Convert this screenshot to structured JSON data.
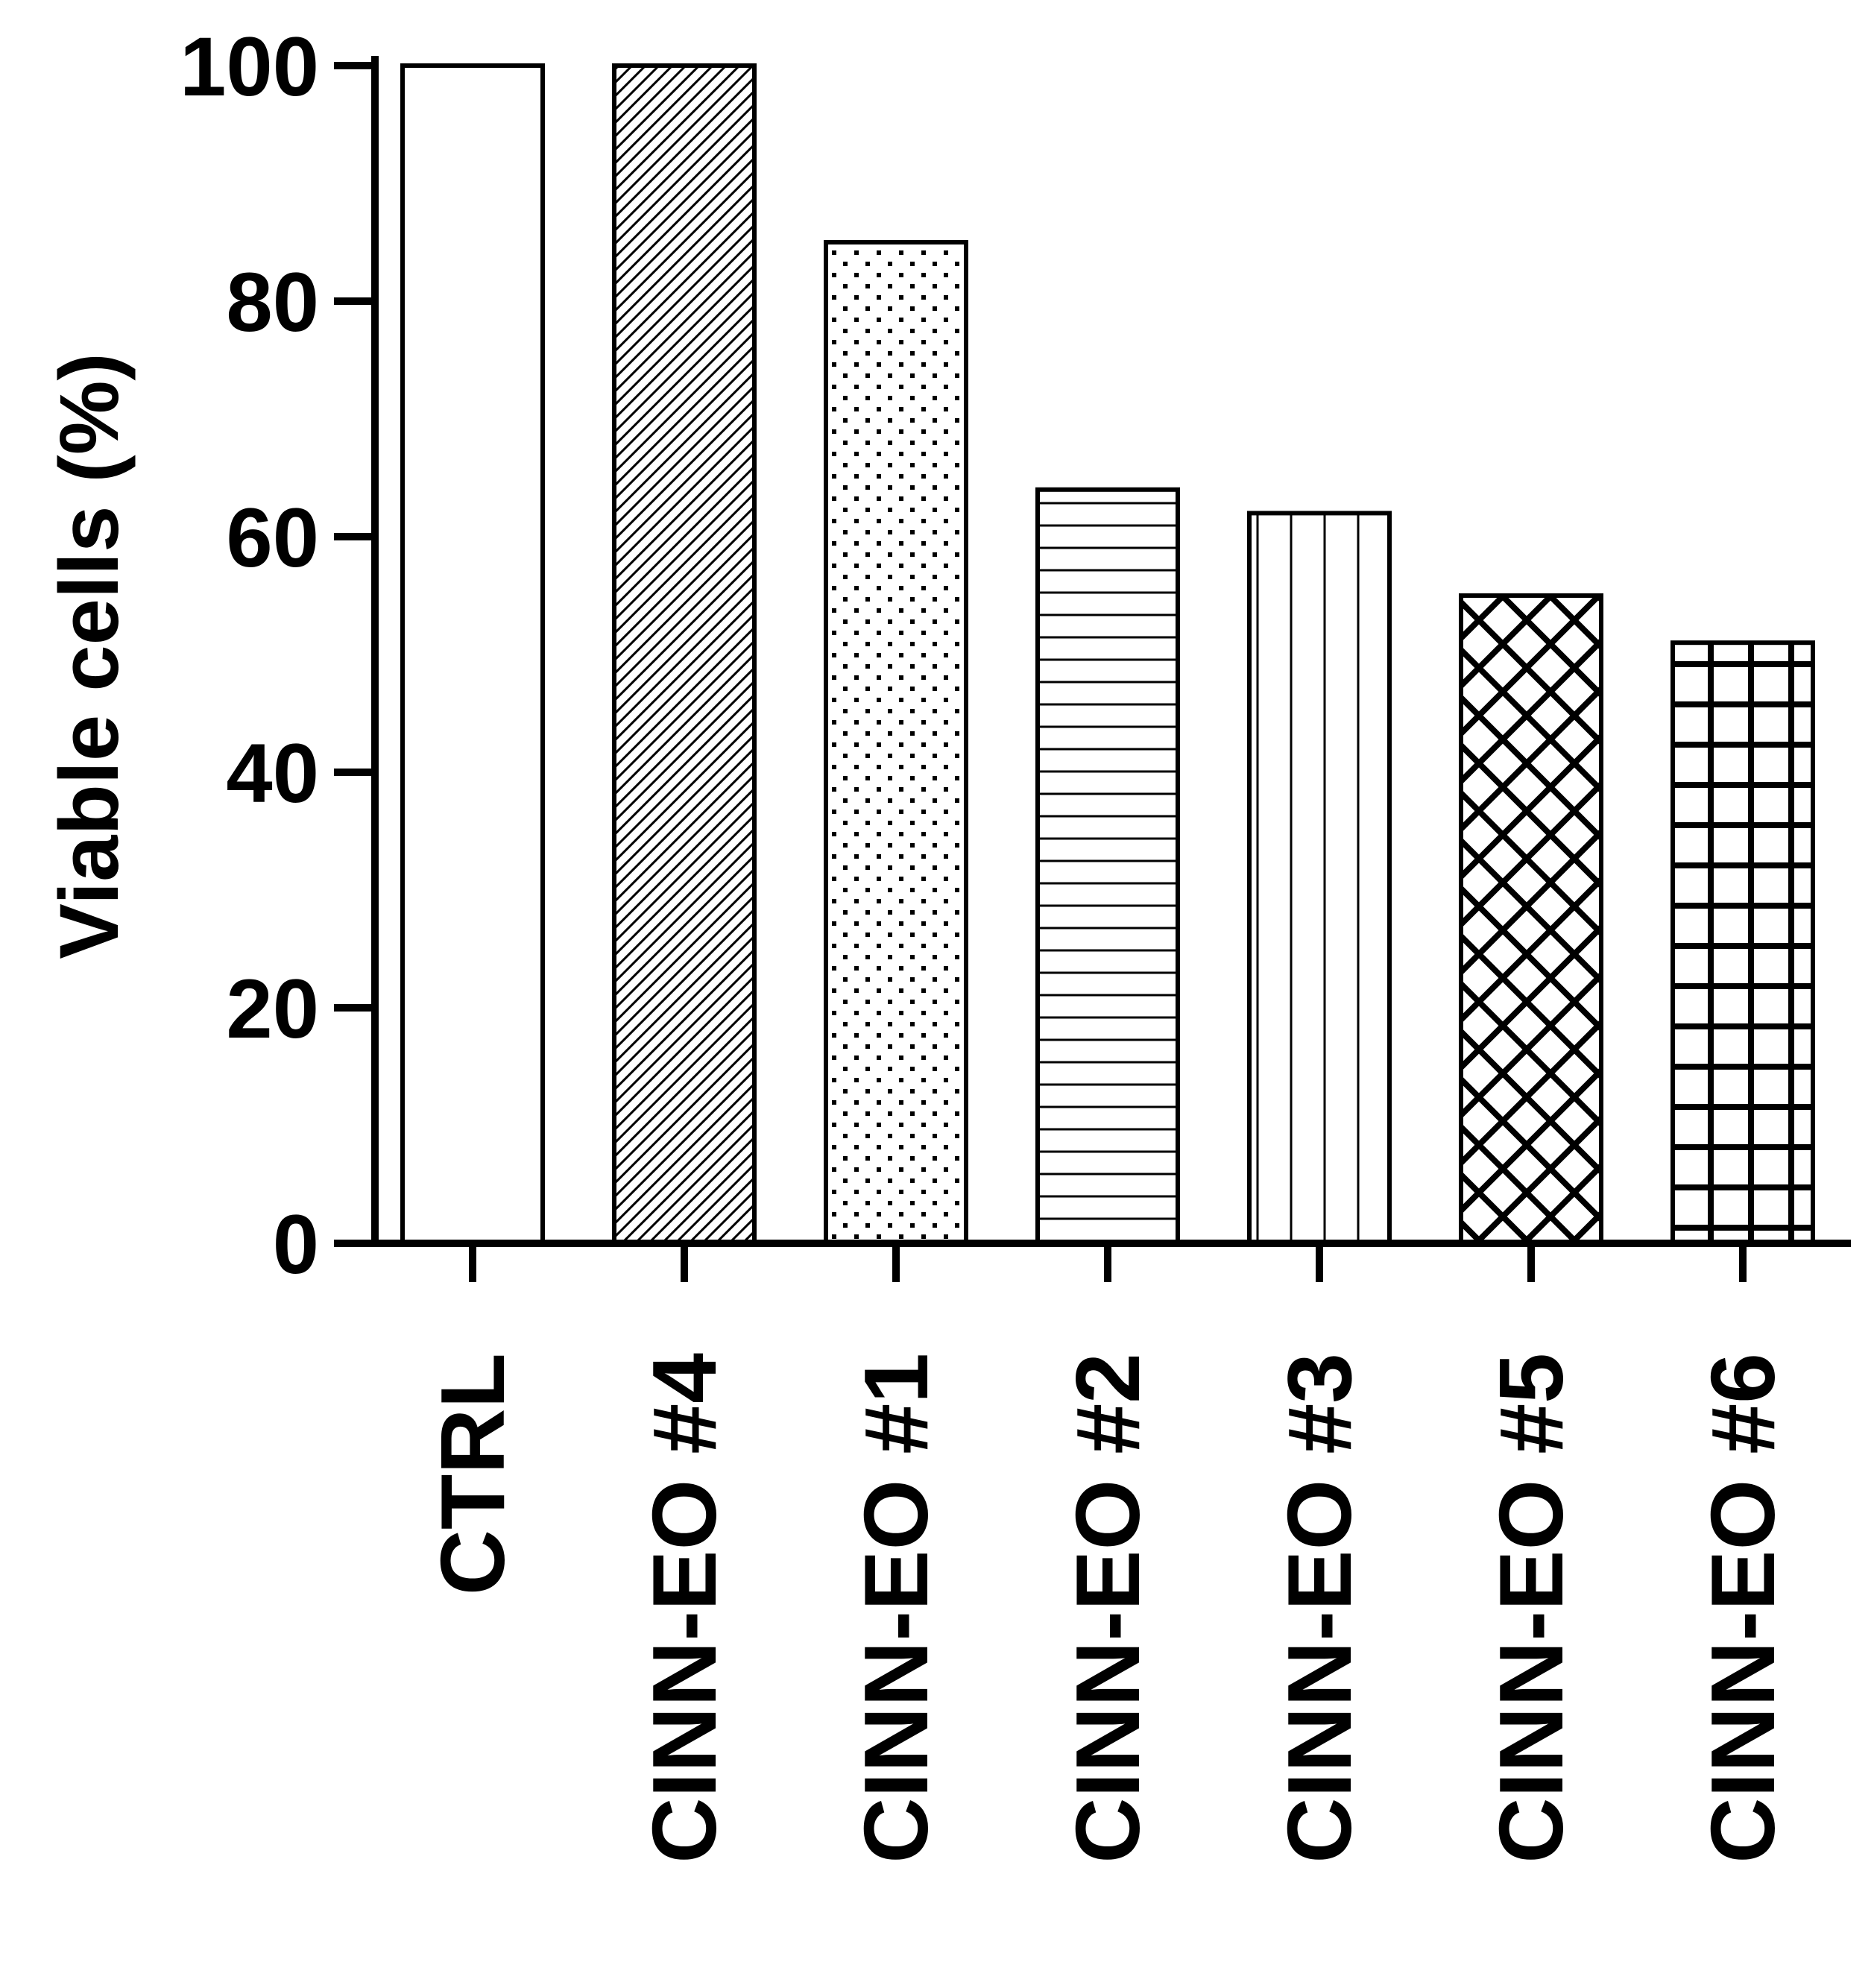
{
  "chart_data": {
    "type": "bar",
    "title": "",
    "xlabel": "",
    "ylabel": "Viable cells (%)",
    "ylim": [
      0,
      100
    ],
    "yticks": [
      0,
      20,
      40,
      60,
      80,
      100
    ],
    "grid": false,
    "legend": "none",
    "categories": [
      "CTRL",
      "CINN-EO #4",
      "CINN-EO #1",
      "CINN-EO #2",
      "CINN-EO #3",
      "CINN-EO #5",
      "CINN-EO #6"
    ],
    "values": [
      100,
      100,
      85,
      64,
      62,
      55,
      51
    ],
    "patterns": [
      "none",
      "diagonal-hatch",
      "dots",
      "horizontal-lines",
      "vertical-lines",
      "crosshatch-diagonal",
      "grid"
    ],
    "colors": {
      "fill": "#ffffff",
      "stroke": "#000000"
    }
  }
}
